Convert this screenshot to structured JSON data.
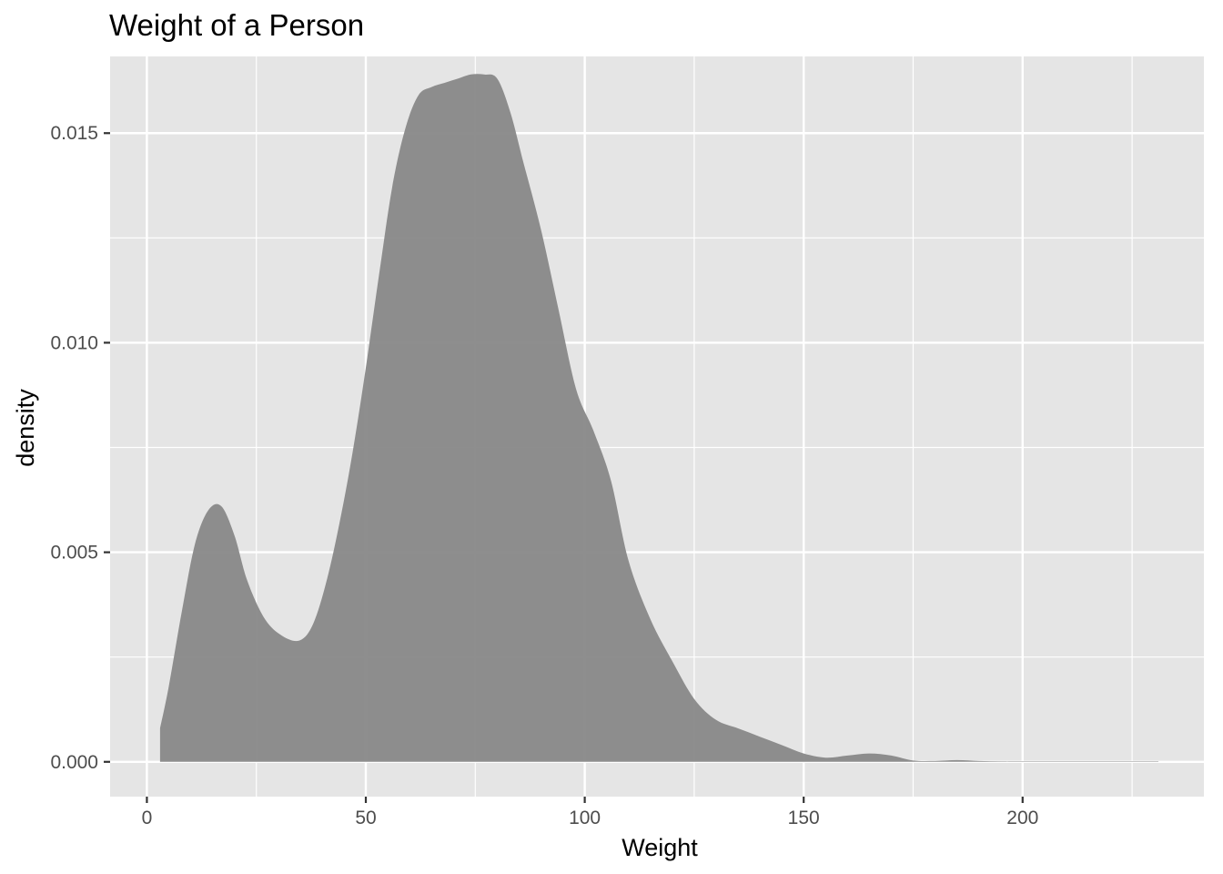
{
  "chart_data": {
    "type": "area",
    "title": "Weight of a Person",
    "xlabel": "Weight",
    "ylabel": "density",
    "xlim": [
      -8.4,
      241.4
    ],
    "ylim": [
      -0.00083,
      0.01683
    ],
    "x_ticks": [
      0,
      50,
      100,
      150,
      200
    ],
    "x_tick_labels": [
      "0",
      "50",
      "100",
      "150",
      "200"
    ],
    "y_ticks": [
      0,
      0.005,
      0.01,
      0.015
    ],
    "y_tick_labels": [
      "0.000",
      "0.005",
      "0.010",
      "0.015"
    ],
    "grid": true,
    "legend": "none",
    "colors": {
      "panel": "#e5e5e5",
      "grid": "#ffffff",
      "fill": "#888888",
      "tick_text": "#4d4d4d",
      "tick_mark": "#333333"
    },
    "series": [
      {
        "x": [
          3,
          5,
          8,
          11,
          14,
          17,
          20,
          23,
          27,
          31,
          35,
          38,
          41,
          44,
          47,
          50,
          53,
          56,
          59,
          62,
          65,
          68,
          71,
          74,
          77,
          80,
          83,
          86,
          90,
          94,
          98,
          102,
          106,
          110,
          115,
          120,
          125,
          130,
          135,
          140,
          145,
          150,
          155,
          160,
          165,
          170,
          175,
          180,
          185,
          190,
          195,
          200,
          210,
          220,
          231
        ],
        "y": [
          0.0008,
          0.0018,
          0.0036,
          0.0052,
          0.006,
          0.0061,
          0.0054,
          0.0043,
          0.0034,
          0.003,
          0.0029,
          0.0033,
          0.0043,
          0.0057,
          0.0074,
          0.0094,
          0.0116,
          0.0137,
          0.0151,
          0.0159,
          0.0161,
          0.0162,
          0.0163,
          0.0164,
          0.0164,
          0.0163,
          0.0155,
          0.0143,
          0.0127,
          0.0108,
          0.0089,
          0.0079,
          0.0067,
          0.0048,
          0.0034,
          0.0024,
          0.0015,
          0.001,
          0.0008,
          0.0006,
          0.0004,
          0.0002,
          0.0001,
          0.00015,
          0.0002,
          0.00015,
          3e-05,
          2e-05,
          4e-05,
          2e-05,
          1e-05,
          1e-05,
          1e-05,
          1e-05,
          1e-05
        ]
      }
    ]
  }
}
